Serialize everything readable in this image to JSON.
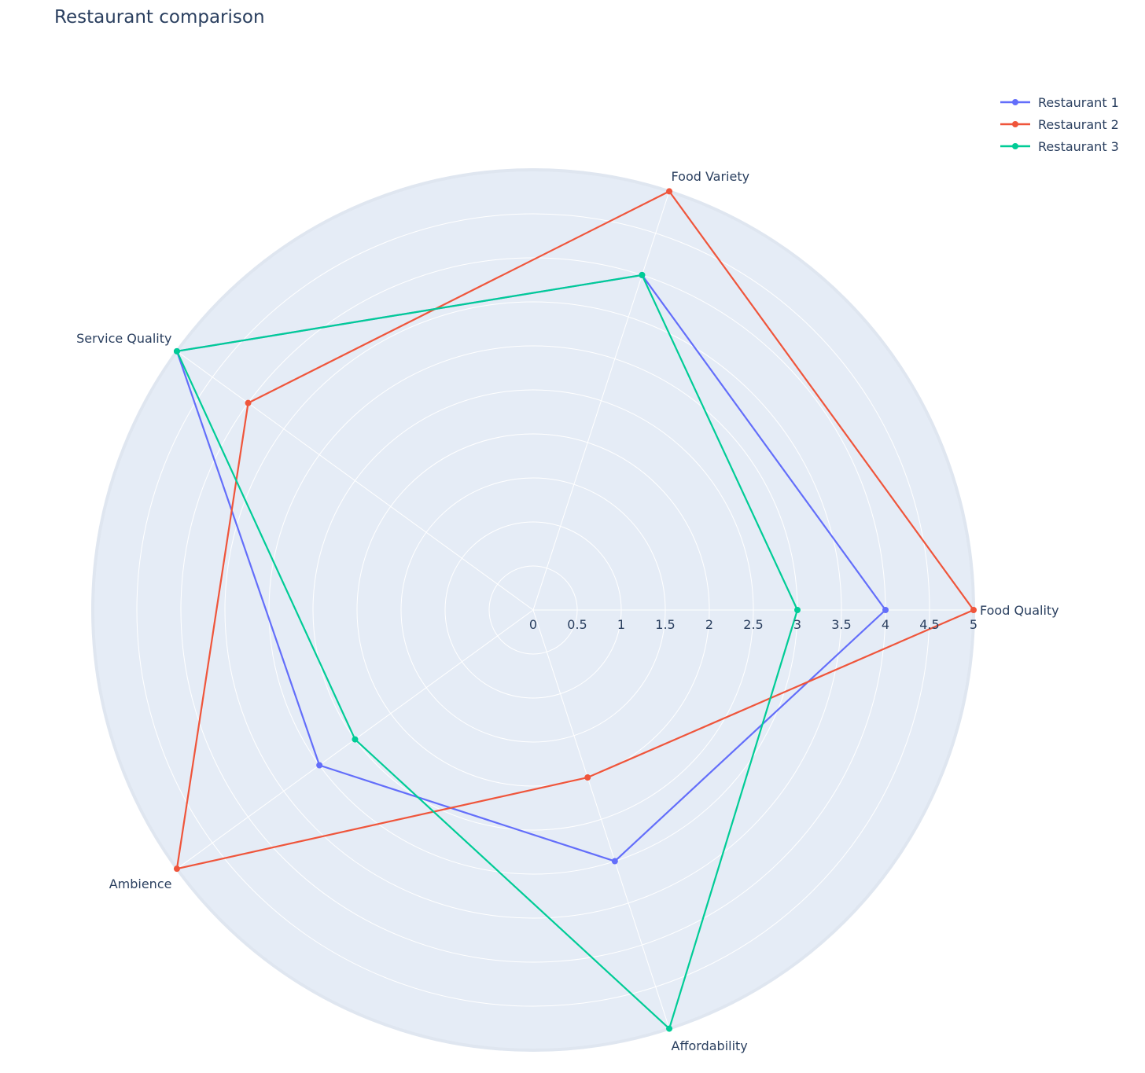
{
  "chart_data": {
    "type": "radar",
    "title": "Restaurant comparison",
    "categories": [
      "Food Quality",
      "Food Variety",
      "Service Quality",
      "Ambience",
      "Affordability"
    ],
    "radial_range": [
      0,
      5
    ],
    "radial_ticks": [
      "0",
      "0.5",
      "1",
      "1.5",
      "2",
      "2.5",
      "3",
      "3.5",
      "4",
      "4.5",
      "5"
    ],
    "series": [
      {
        "name": "Restaurant 1",
        "color": "#636efa",
        "values": [
          4,
          4,
          5,
          3,
          3
        ]
      },
      {
        "name": "Restaurant 2",
        "color": "#EF553B",
        "values": [
          5,
          5,
          4,
          5,
          2
        ]
      },
      {
        "name": "Restaurant 3",
        "color": "#00cc96",
        "values": [
          3,
          4,
          5,
          2.5,
          5
        ]
      }
    ],
    "grid": true,
    "legend_position": "top-right",
    "background_color": "#E5ECF6"
  }
}
